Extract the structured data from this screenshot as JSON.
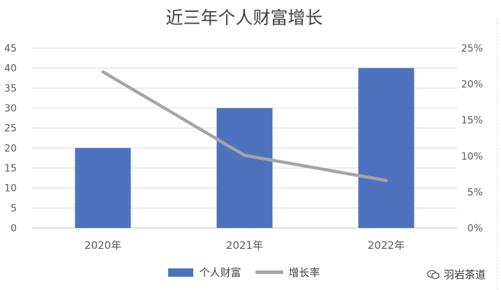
{
  "title": "近三年个人财富增长",
  "chart_data": {
    "type": "bar",
    "title": "近三年个人财富增长",
    "categories": [
      "2020年",
      "2021年",
      "2022年"
    ],
    "series": [
      {
        "name": "个人财富",
        "type": "bar",
        "axis": "left",
        "values": [
          20,
          30,
          40
        ],
        "color": "#4F72BE"
      },
      {
        "name": "增长率",
        "type": "line",
        "axis": "right",
        "values": [
          0.217,
          0.101,
          0.066
        ],
        "color": "#A5A5A5"
      }
    ],
    "y_left": {
      "min": 0,
      "max": 45,
      "step": 5,
      "ticks": [
        "0",
        "5",
        "10",
        "15",
        "20",
        "25",
        "30",
        "35",
        "40",
        "45"
      ]
    },
    "y_right": {
      "min": 0,
      "max": 0.25,
      "step": 0.05,
      "ticks": [
        "0%",
        "5%",
        "10%",
        "15%",
        "20%",
        "25%"
      ]
    },
    "grid": true,
    "legend_position": "bottom"
  },
  "legend": [
    {
      "label": "个人财富",
      "kind": "bar",
      "color": "#4F72BE"
    },
    {
      "label": "增长率",
      "kind": "line",
      "color": "#A5A5A5"
    }
  ],
  "watermark": {
    "text": "羽岩茶道",
    "icon": "wechat-icon"
  }
}
